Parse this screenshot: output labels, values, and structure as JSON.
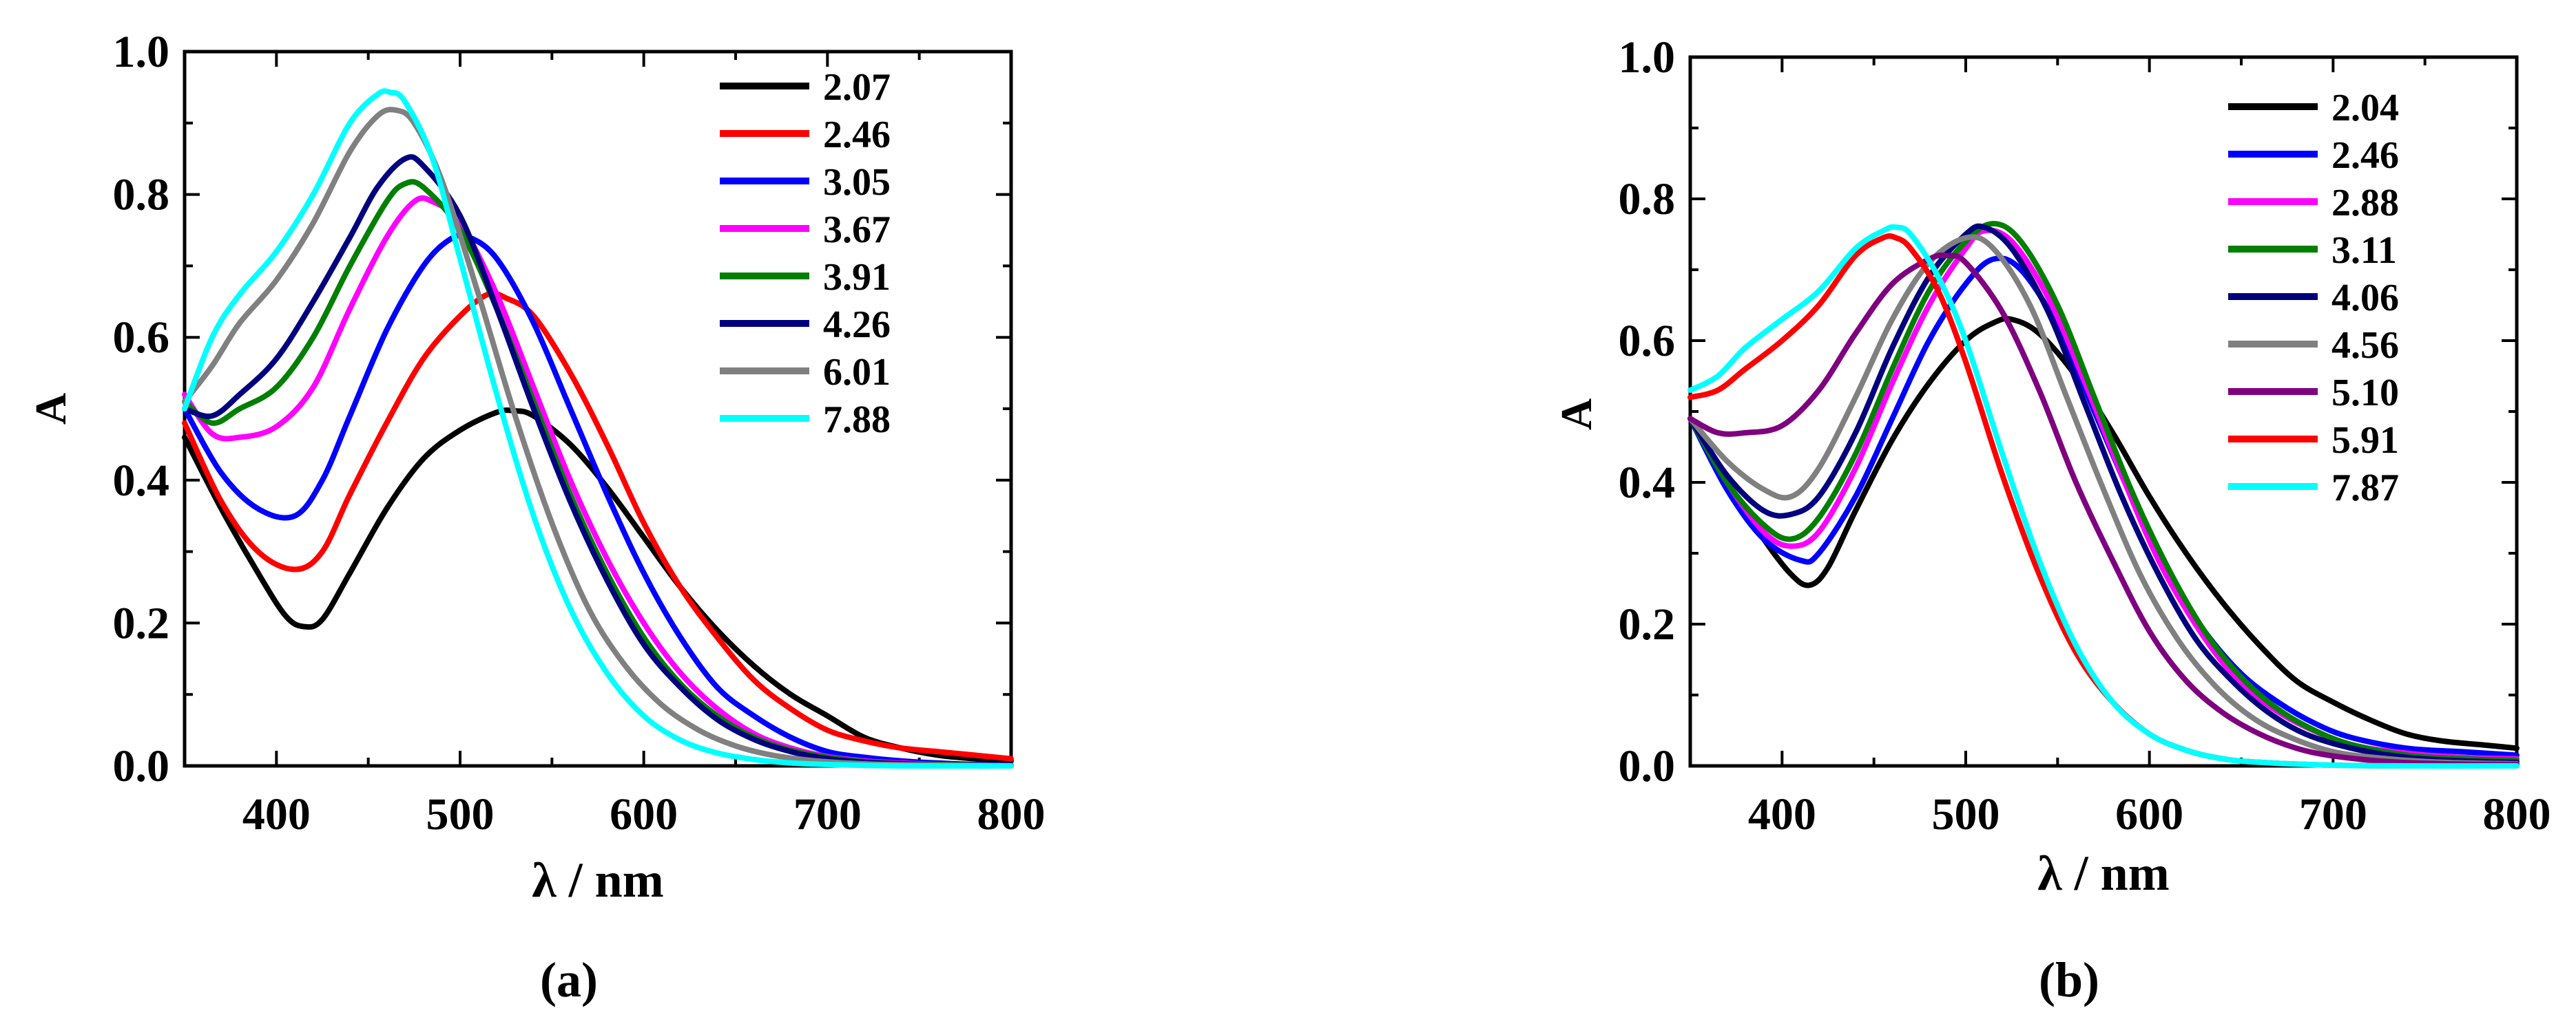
{
  "chart_data": [
    {
      "type": "line",
      "panel_label": "(a)",
      "xlabel": "λ / nm",
      "ylabel": "A",
      "xlim": [
        350,
        800
      ],
      "ylim": [
        0.0,
        1.0
      ],
      "xticks": [
        "400",
        "500",
        "600",
        "700",
        "800"
      ],
      "yticks": [
        "0.0",
        "0.2",
        "0.4",
        "0.6",
        "0.8",
        "1.0"
      ],
      "legend_position": "top-right",
      "series": [
        {
          "name": "2.07",
          "color": "#000000",
          "x": [
            350,
            370,
            390,
            405,
            415,
            425,
            440,
            460,
            480,
            500,
            520,
            530,
            540,
            560,
            580,
            600,
            620,
            640,
            660,
            680,
            700,
            720,
            740,
            760,
            780,
            800
          ],
          "y": [
            0.46,
            0.36,
            0.27,
            0.21,
            0.195,
            0.205,
            0.27,
            0.36,
            0.43,
            0.47,
            0.495,
            0.497,
            0.49,
            0.45,
            0.39,
            0.32,
            0.25,
            0.19,
            0.14,
            0.1,
            0.07,
            0.04,
            0.025,
            0.015,
            0.01,
            0.007
          ]
        },
        {
          "name": "2.46",
          "color": "#ff0000",
          "x": [
            350,
            370,
            390,
            410,
            425,
            440,
            460,
            480,
            500,
            515,
            525,
            540,
            560,
            580,
            600,
            620,
            640,
            660,
            680,
            700,
            720,
            740,
            760,
            780,
            800
          ],
          "y": [
            0.48,
            0.37,
            0.3,
            0.275,
            0.3,
            0.38,
            0.48,
            0.57,
            0.63,
            0.66,
            0.655,
            0.63,
            0.55,
            0.45,
            0.34,
            0.25,
            0.18,
            0.12,
            0.08,
            0.05,
            0.035,
            0.025,
            0.02,
            0.015,
            0.01
          ]
        },
        {
          "name": "3.05",
          "color": "#0000ff",
          "x": [
            350,
            370,
            390,
            410,
            425,
            440,
            460,
            480,
            495,
            505,
            520,
            540,
            560,
            580,
            600,
            620,
            640,
            660,
            680,
            700,
            720,
            740,
            760,
            780,
            800
          ],
          "y": [
            0.5,
            0.41,
            0.36,
            0.35,
            0.4,
            0.49,
            0.61,
            0.7,
            0.738,
            0.74,
            0.71,
            0.62,
            0.5,
            0.38,
            0.27,
            0.18,
            0.11,
            0.07,
            0.04,
            0.02,
            0.012,
            0.007,
            0.004,
            0.002,
            0.001
          ]
        },
        {
          "name": "3.67",
          "color": "#ff00ff",
          "x": [
            350,
            365,
            380,
            400,
            420,
            440,
            460,
            475,
            485,
            500,
            520,
            540,
            560,
            580,
            600,
            620,
            640,
            660,
            680,
            700,
            720,
            740,
            760,
            780,
            800
          ],
          "y": [
            0.52,
            0.465,
            0.46,
            0.475,
            0.53,
            0.64,
            0.74,
            0.79,
            0.79,
            0.76,
            0.66,
            0.53,
            0.4,
            0.29,
            0.2,
            0.13,
            0.08,
            0.045,
            0.025,
            0.013,
            0.007,
            0.004,
            0.002,
            0.001,
            0.0
          ]
        },
        {
          "name": "3.91",
          "color": "#007f00",
          "x": [
            350,
            365,
            380,
            400,
            420,
            440,
            460,
            470,
            480,
            500,
            520,
            540,
            560,
            580,
            600,
            620,
            640,
            660,
            680,
            700,
            720,
            740,
            760,
            780,
            800
          ],
          "y": [
            0.51,
            0.48,
            0.5,
            0.53,
            0.6,
            0.7,
            0.79,
            0.815,
            0.81,
            0.75,
            0.64,
            0.51,
            0.38,
            0.27,
            0.18,
            0.115,
            0.07,
            0.04,
            0.022,
            0.012,
            0.006,
            0.003,
            0.002,
            0.001,
            0.0
          ]
        },
        {
          "name": "4.26",
          "color": "#00007f",
          "x": [
            350,
            365,
            380,
            400,
            420,
            440,
            455,
            470,
            480,
            500,
            520,
            540,
            560,
            580,
            600,
            620,
            640,
            660,
            680,
            700,
            720,
            740,
            760,
            780,
            800
          ],
          "y": [
            0.5,
            0.49,
            0.52,
            0.57,
            0.65,
            0.74,
            0.81,
            0.85,
            0.84,
            0.77,
            0.64,
            0.5,
            0.37,
            0.26,
            0.17,
            0.11,
            0.065,
            0.037,
            0.02,
            0.01,
            0.005,
            0.003,
            0.001,
            0.0,
            0.0
          ]
        },
        {
          "name": "6.01",
          "color": "#808080",
          "x": [
            350,
            365,
            380,
            400,
            420,
            440,
            455,
            465,
            475,
            490,
            510,
            530,
            550,
            570,
            590,
            610,
            630,
            650,
            670,
            690,
            710,
            730,
            760,
            800
          ],
          "y": [
            0.51,
            0.56,
            0.62,
            0.68,
            0.76,
            0.86,
            0.91,
            0.918,
            0.9,
            0.82,
            0.66,
            0.49,
            0.34,
            0.22,
            0.14,
            0.085,
            0.05,
            0.028,
            0.015,
            0.008,
            0.004,
            0.002,
            0.001,
            0.0
          ]
        },
        {
          "name": "7.88",
          "color": "#00ffff",
          "x": [
            350,
            365,
            380,
            400,
            420,
            440,
            455,
            462,
            470,
            485,
            500,
            520,
            540,
            560,
            580,
            600,
            620,
            640,
            660,
            680,
            700,
            740,
            800
          ],
          "y": [
            0.5,
            0.6,
            0.66,
            0.72,
            0.8,
            0.9,
            0.94,
            0.943,
            0.93,
            0.85,
            0.71,
            0.52,
            0.35,
            0.22,
            0.13,
            0.07,
            0.036,
            0.018,
            0.009,
            0.004,
            0.002,
            0.0,
            0.0
          ]
        }
      ]
    },
    {
      "type": "line",
      "panel_label": "(b)",
      "xlabel": "λ / nm",
      "ylabel": "A",
      "xlim": [
        350,
        800
      ],
      "ylim": [
        0.0,
        1.0
      ],
      "xticks": [
        "400",
        "500",
        "600",
        "700",
        "800"
      ],
      "yticks": [
        "0.0",
        "0.2",
        "0.4",
        "0.6",
        "0.8",
        "1.0"
      ],
      "legend_position": "top-right",
      "series": [
        {
          "name": "2.04",
          "color": "#000000",
          "x": [
            350,
            370,
            390,
            405,
            415,
            425,
            440,
            460,
            480,
            500,
            515,
            525,
            540,
            560,
            580,
            600,
            620,
            640,
            660,
            680,
            700,
            720,
            740,
            760,
            780,
            800
          ],
          "y": [
            0.49,
            0.4,
            0.32,
            0.27,
            0.255,
            0.28,
            0.36,
            0.46,
            0.54,
            0.6,
            0.625,
            0.63,
            0.61,
            0.55,
            0.47,
            0.38,
            0.3,
            0.23,
            0.17,
            0.12,
            0.09,
            0.065,
            0.045,
            0.035,
            0.03,
            0.025
          ]
        },
        {
          "name": "2.46",
          "color": "#0000ff",
          "x": [
            350,
            370,
            390,
            410,
            420,
            440,
            460,
            480,
            500,
            515,
            530,
            550,
            570,
            590,
            610,
            630,
            650,
            670,
            690,
            710,
            740,
            770,
            800
          ],
          "y": [
            0.49,
            0.39,
            0.32,
            0.29,
            0.3,
            0.38,
            0.49,
            0.6,
            0.68,
            0.715,
            0.7,
            0.62,
            0.5,
            0.38,
            0.27,
            0.19,
            0.13,
            0.09,
            0.06,
            0.04,
            0.025,
            0.02,
            0.015
          ]
        },
        {
          "name": "2.88",
          "color": "#ff00ff",
          "x": [
            350,
            370,
            390,
            405,
            420,
            440,
            460,
            480,
            500,
            510,
            525,
            545,
            565,
            585,
            605,
            625,
            645,
            665,
            685,
            710,
            740,
            770,
            800
          ],
          "y": [
            0.49,
            0.4,
            0.33,
            0.31,
            0.33,
            0.42,
            0.54,
            0.65,
            0.73,
            0.755,
            0.74,
            0.66,
            0.54,
            0.41,
            0.29,
            0.2,
            0.13,
            0.085,
            0.055,
            0.03,
            0.018,
            0.012,
            0.01
          ]
        },
        {
          "name": "3.11",
          "color": "#007f00",
          "x": [
            350,
            370,
            390,
            405,
            420,
            440,
            460,
            480,
            500,
            515,
            530,
            550,
            570,
            590,
            610,
            630,
            650,
            670,
            690,
            710,
            740,
            770,
            800
          ],
          "y": [
            0.49,
            0.4,
            0.34,
            0.32,
            0.35,
            0.44,
            0.56,
            0.67,
            0.74,
            0.765,
            0.74,
            0.65,
            0.52,
            0.39,
            0.28,
            0.19,
            0.125,
            0.08,
            0.05,
            0.03,
            0.015,
            0.01,
            0.008
          ]
        },
        {
          "name": "4.06",
          "color": "#00007f",
          "x": [
            350,
            370,
            390,
            405,
            420,
            440,
            460,
            480,
            500,
            510,
            525,
            545,
            565,
            585,
            605,
            625,
            645,
            665,
            685,
            710,
            740,
            770,
            800
          ],
          "y": [
            0.49,
            0.41,
            0.36,
            0.355,
            0.38,
            0.47,
            0.59,
            0.69,
            0.75,
            0.76,
            0.73,
            0.64,
            0.51,
            0.38,
            0.27,
            0.18,
            0.12,
            0.075,
            0.045,
            0.025,
            0.012,
            0.007,
            0.005
          ]
        },
        {
          "name": "4.56",
          "color": "#808080",
          "x": [
            350,
            370,
            390,
            405,
            420,
            440,
            460,
            480,
            500,
            515,
            535,
            555,
            575,
            595,
            615,
            635,
            655,
            675,
            700,
            730,
            760,
            800
          ],
          "y": [
            0.49,
            0.43,
            0.39,
            0.38,
            0.42,
            0.52,
            0.63,
            0.71,
            0.745,
            0.73,
            0.65,
            0.52,
            0.39,
            0.27,
            0.18,
            0.115,
            0.07,
            0.042,
            0.02,
            0.01,
            0.005,
            0.003
          ]
        },
        {
          "name": "5.10",
          "color": "#7f007f",
          "x": [
            350,
            365,
            380,
            400,
            420,
            440,
            460,
            480,
            490,
            500,
            520,
            540,
            560,
            580,
            600,
            620,
            640,
            660,
            680,
            700,
            730,
            760,
            800
          ],
          "y": [
            0.49,
            0.47,
            0.47,
            0.48,
            0.53,
            0.61,
            0.68,
            0.715,
            0.72,
            0.71,
            0.64,
            0.53,
            0.4,
            0.29,
            0.19,
            0.12,
            0.075,
            0.045,
            0.025,
            0.014,
            0.006,
            0.003,
            0.002
          ]
        },
        {
          "name": "5.91",
          "color": "#ff0000",
          "x": [
            350,
            365,
            380,
            400,
            420,
            440,
            455,
            462,
            470,
            485,
            500,
            520,
            540,
            560,
            580,
            600,
            620,
            640,
            660,
            700,
            740,
            800
          ],
          "y": [
            0.52,
            0.53,
            0.56,
            0.6,
            0.65,
            0.72,
            0.745,
            0.745,
            0.73,
            0.67,
            0.57,
            0.41,
            0.27,
            0.16,
            0.09,
            0.045,
            0.022,
            0.01,
            0.005,
            0.001,
            0.0,
            0.0
          ]
        },
        {
          "name": "7.87",
          "color": "#00ffff",
          "x": [
            350,
            365,
            380,
            400,
            420,
            440,
            455,
            462,
            470,
            485,
            500,
            520,
            540,
            560,
            580,
            600,
            620,
            640,
            660,
            700,
            740,
            800
          ],
          "y": [
            0.53,
            0.55,
            0.59,
            0.63,
            0.67,
            0.73,
            0.755,
            0.76,
            0.75,
            0.69,
            0.6,
            0.44,
            0.29,
            0.17,
            0.09,
            0.045,
            0.022,
            0.01,
            0.005,
            0.001,
            0.0,
            0.0
          ]
        }
      ]
    }
  ]
}
